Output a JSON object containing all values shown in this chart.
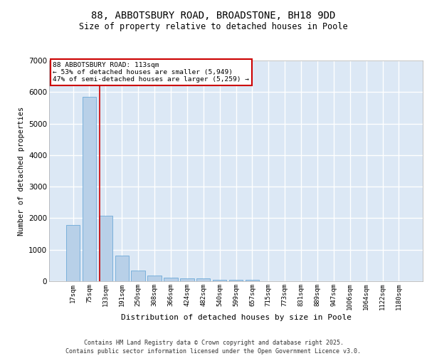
{
  "title1": "88, ABBOTSBURY ROAD, BROADSTONE, BH18 9DD",
  "title2": "Size of property relative to detached houses in Poole",
  "xlabel": "Distribution of detached houses by size in Poole",
  "ylabel": "Number of detached properties",
  "categories": [
    "17sqm",
    "75sqm",
    "133sqm",
    "191sqm",
    "250sqm",
    "308sqm",
    "366sqm",
    "424sqm",
    "482sqm",
    "540sqm",
    "599sqm",
    "657sqm",
    "715sqm",
    "773sqm",
    "831sqm",
    "889sqm",
    "947sqm",
    "1006sqm",
    "1064sqm",
    "1122sqm",
    "1180sqm"
  ],
  "values": [
    1780,
    5850,
    2080,
    820,
    340,
    185,
    115,
    95,
    80,
    55,
    50,
    45,
    0,
    0,
    0,
    0,
    0,
    0,
    0,
    0,
    0
  ],
  "bar_color": "#b8d0e8",
  "bar_edge_color": "#5a9fd4",
  "background_color": "#dce8f5",
  "grid_color": "#ffffff",
  "annotation_text": "88 ABBOTSBURY ROAD: 113sqm\n← 53% of detached houses are smaller (5,949)\n47% of semi-detached houses are larger (5,259) →",
  "annotation_box_color": "#ffffff",
  "annotation_border_color": "#cc0000",
  "vline_color": "#cc0000",
  "footer_text": "Contains HM Land Registry data © Crown copyright and database right 2025.\nContains public sector information licensed under the Open Government Licence v3.0.",
  "ylim": [
    0,
    7000
  ],
  "yticks": [
    0,
    1000,
    2000,
    3000,
    4000,
    5000,
    6000,
    7000
  ]
}
